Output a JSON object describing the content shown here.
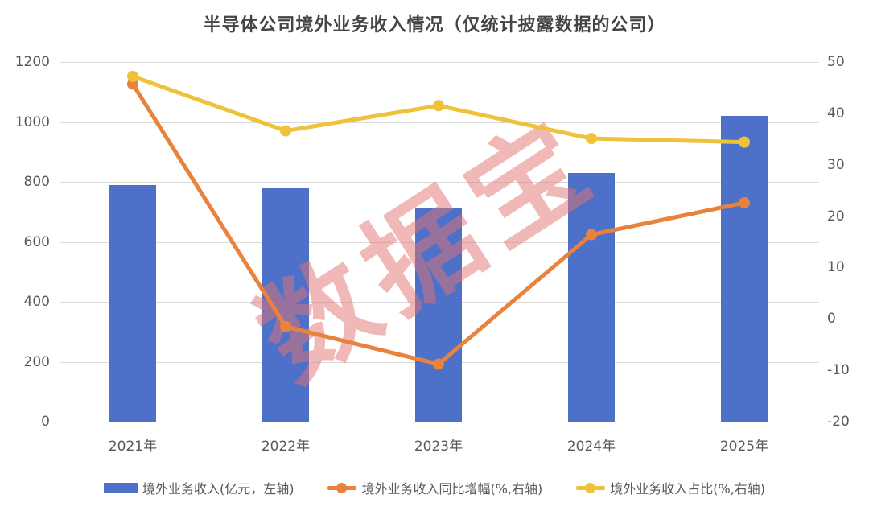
{
  "title": "半导体公司境外业务收入情况（仅统计披露数据的公司）",
  "watermark": "数据宝",
  "colors": {
    "bar": "#4d71c8",
    "line_growth": "#e8823c",
    "line_share": "#efc23b",
    "grid": "#dbdbdb",
    "axis_text": "#595959",
    "title_text": "#454545",
    "watermark_pink": "#e47171"
  },
  "chart_data": {
    "type": "bar",
    "subtype": "combo-bar-line",
    "title": "半导体公司境外业务收入情况（仅统计披露数据的公司）",
    "categories": [
      "2021年",
      "2022年",
      "2023年",
      "2024年",
      "2025年"
    ],
    "series": [
      {
        "name": "境外业务收入(亿元，左轴)",
        "type": "bar",
        "axis": "left",
        "color": "#4d71c8",
        "values": [
          790,
          780,
          715,
          830,
          1020
        ]
      },
      {
        "name": "境外业务收入同比增幅(%,右轴)",
        "type": "line",
        "axis": "right",
        "color": "#e8823c",
        "values": [
          45.7,
          -1.5,
          -8.8,
          16.4,
          22.6
        ]
      },
      {
        "name": "境外业务收入占比(%,右轴)",
        "type": "line",
        "axis": "right",
        "color": "#efc23b",
        "values": [
          47.2,
          36.6,
          41.5,
          35.1,
          34.4
        ]
      }
    ],
    "left_axis": {
      "min": 0,
      "max": 1200,
      "step": 200,
      "ticks": [
        "0",
        "200",
        "400",
        "600",
        "800",
        "1000",
        "1200"
      ]
    },
    "right_axis": {
      "min": -20,
      "max": 50,
      "step": 10,
      "ticks": [
        "-20",
        "-10",
        "0",
        "10",
        "20",
        "30",
        "40",
        "50"
      ]
    },
    "grid": "horizontal",
    "legend_position": "bottom",
    "xlabel": "",
    "ylabel": ""
  }
}
